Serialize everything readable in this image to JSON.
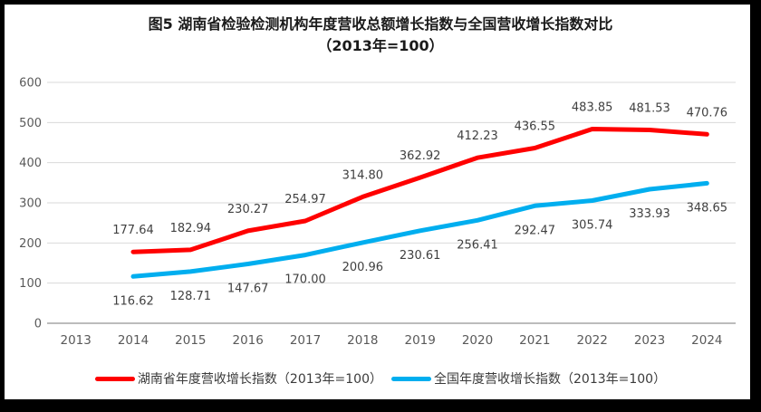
{
  "title": {
    "line1": "图5 湖南省检验检测机构年度营收总额增长指数与全国营收增长指数对比",
    "line2": "（2013年=100）"
  },
  "chart_data": {
    "type": "line",
    "title": "图5 湖南省检验检测机构年度营收总额增长指数与全国营收增长指数对比（2013年=100）",
    "categories": [
      "2013",
      "2014",
      "2015",
      "2016",
      "2017",
      "2018",
      "2019",
      "2020",
      "2021",
      "2022",
      "2023",
      "2024"
    ],
    "xlabel": "",
    "ylabel": "",
    "ylim": [
      0,
      600
    ],
    "y_ticks": [
      0,
      100,
      200,
      300,
      400,
      500,
      600
    ],
    "grid": true,
    "legend_position": "bottom",
    "value_decimals": 2,
    "series": [
      {
        "key": "hunan",
        "name": "湖南省年度营收增长指数（2013年=100）",
        "color": "#FF0000",
        "label_position": "above",
        "start_category": "2014",
        "values": [
          177.64,
          182.94,
          230.27,
          254.97,
          314.8,
          362.92,
          412.23,
          436.55,
          483.85,
          481.53,
          470.76
        ]
      },
      {
        "key": "national",
        "name": "全国年度营收增长指数（2013年=100）",
        "color": "#00AEEF",
        "label_position": "below",
        "start_category": "2014",
        "values": [
          116.62,
          128.71,
          147.67,
          170.0,
          200.96,
          230.61,
          256.41,
          292.47,
          305.74,
          333.93,
          348.65
        ]
      }
    ]
  },
  "styles": {
    "axis_text_color": "#595959",
    "data_label_color": "#404040",
    "gridline_color": "#D9D9D9",
    "axis_line_color": "#A6A6A6",
    "frame_color": "#000000"
  }
}
